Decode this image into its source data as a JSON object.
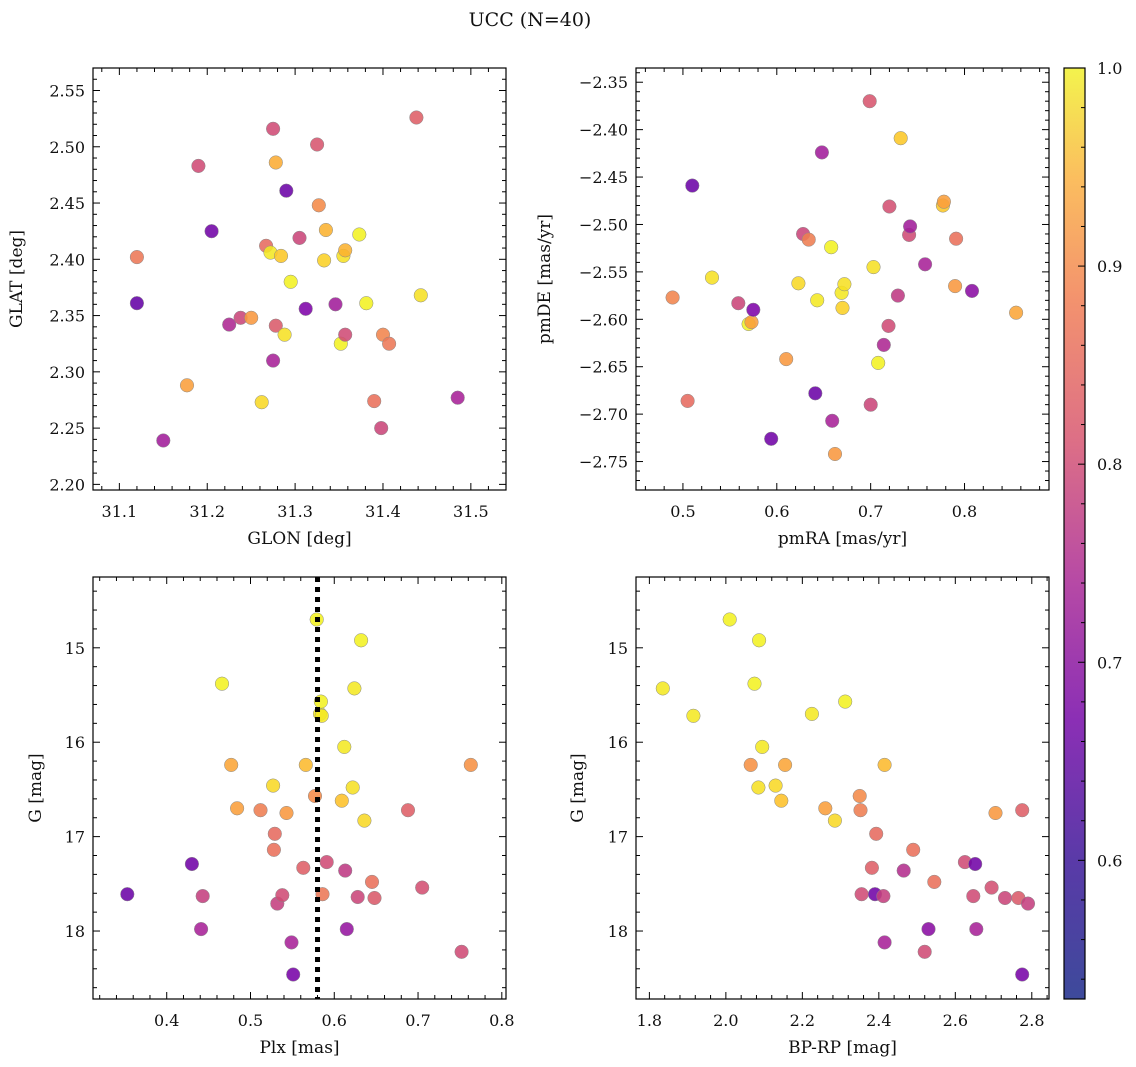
{
  "figure": {
    "title": "UCC (N=40)"
  },
  "colorbar": {
    "colormap": "plasma",
    "range": [
      0.53,
      1.0
    ],
    "ticks": [
      0.6,
      0.7,
      0.8,
      0.9,
      1.0
    ],
    "tick_labels": [
      "0.6",
      "0.7",
      "0.8",
      "0.9",
      "1.0"
    ]
  },
  "chart_data": [
    {
      "type": "scatter",
      "id": "glon-glat",
      "xlabel": "GLON [deg]",
      "ylabel": "GLAT [deg]",
      "xlim": [
        31.07,
        31.54
      ],
      "ylim": [
        2.195,
        2.57
      ],
      "xticks": [
        31.1,
        31.2,
        31.3,
        31.4,
        31.5
      ],
      "yticks": [
        2.2,
        2.25,
        2.3,
        2.35,
        2.4,
        2.45,
        2.5,
        2.55
      ],
      "xtick_labels": [
        "31.1",
        "31.2",
        "31.3",
        "31.4",
        "31.5"
      ],
      "ytick_labels": [
        "2.20",
        "2.25",
        "2.30",
        "2.35",
        "2.40",
        "2.45",
        "2.50",
        "2.55"
      ],
      "points": [
        {
          "x": 31.12,
          "y": 2.402,
          "c": 0.82
        },
        {
          "x": 31.12,
          "y": 2.361,
          "c": 0.56
        },
        {
          "x": 31.15,
          "y": 2.239,
          "c": 0.66
        },
        {
          "x": 31.177,
          "y": 2.288,
          "c": 0.88
        },
        {
          "x": 31.19,
          "y": 2.483,
          "c": 0.74
        },
        {
          "x": 31.205,
          "y": 2.425,
          "c": 0.58
        },
        {
          "x": 31.225,
          "y": 2.342,
          "c": 0.68
        },
        {
          "x": 31.238,
          "y": 2.348,
          "c": 0.73
        },
        {
          "x": 31.25,
          "y": 2.348,
          "c": 0.87
        },
        {
          "x": 31.262,
          "y": 2.273,
          "c": 0.96
        },
        {
          "x": 31.267,
          "y": 2.412,
          "c": 0.8
        },
        {
          "x": 31.272,
          "y": 2.406,
          "c": 0.98
        },
        {
          "x": 31.275,
          "y": 2.516,
          "c": 0.74
        },
        {
          "x": 31.275,
          "y": 2.31,
          "c": 0.67
        },
        {
          "x": 31.278,
          "y": 2.341,
          "c": 0.77
        },
        {
          "x": 31.278,
          "y": 2.486,
          "c": 0.9
        },
        {
          "x": 31.284,
          "y": 2.403,
          "c": 0.94
        },
        {
          "x": 31.288,
          "y": 2.333,
          "c": 0.97
        },
        {
          "x": 31.29,
          "y": 2.461,
          "c": 0.57
        },
        {
          "x": 31.295,
          "y": 2.38,
          "c": 0.99
        },
        {
          "x": 31.305,
          "y": 2.419,
          "c": 0.73
        },
        {
          "x": 31.312,
          "y": 2.356,
          "c": 0.6
        },
        {
          "x": 31.325,
          "y": 2.502,
          "c": 0.76
        },
        {
          "x": 31.327,
          "y": 2.448,
          "c": 0.85
        },
        {
          "x": 31.333,
          "y": 2.399,
          "c": 0.95
        },
        {
          "x": 31.335,
          "y": 2.426,
          "c": 0.91
        },
        {
          "x": 31.346,
          "y": 2.36,
          "c": 0.66
        },
        {
          "x": 31.352,
          "y": 2.325,
          "c": 0.99
        },
        {
          "x": 31.355,
          "y": 2.403,
          "c": 0.97
        },
        {
          "x": 31.357,
          "y": 2.408,
          "c": 0.91
        },
        {
          "x": 31.357,
          "y": 2.333,
          "c": 0.74
        },
        {
          "x": 31.373,
          "y": 2.422,
          "c": 0.99
        },
        {
          "x": 31.381,
          "y": 2.361,
          "c": 0.99
        },
        {
          "x": 31.39,
          "y": 2.274,
          "c": 0.81
        },
        {
          "x": 31.398,
          "y": 2.25,
          "c": 0.73
        },
        {
          "x": 31.4,
          "y": 2.333,
          "c": 0.84
        },
        {
          "x": 31.407,
          "y": 2.325,
          "c": 0.82
        },
        {
          "x": 31.438,
          "y": 2.526,
          "c": 0.78
        },
        {
          "x": 31.443,
          "y": 2.368,
          "c": 0.97
        },
        {
          "x": 31.485,
          "y": 2.277,
          "c": 0.67
        }
      ]
    },
    {
      "type": "scatter",
      "id": "pmra-pmde",
      "xlabel": "pmRA [mas/yr]",
      "ylabel": "pmDE [mas/yr]",
      "xlim": [
        0.45,
        0.89
      ],
      "ylim": [
        -2.78,
        -2.335
      ],
      "xticks": [
        0.5,
        0.6,
        0.7,
        0.8
      ],
      "yticks": [
        -2.75,
        -2.7,
        -2.65,
        -2.6,
        -2.55,
        -2.5,
        -2.45,
        -2.4,
        -2.35
      ],
      "xtick_labels": [
        "0.5",
        "0.6",
        "0.7",
        "0.8"
      ],
      "ytick_labels": [
        "−2.75",
        "−2.70",
        "−2.65",
        "−2.60",
        "−2.55",
        "−2.50",
        "−2.45",
        "−2.40",
        "−2.35"
      ],
      "points": [
        {
          "x": 0.489,
          "y": -2.577,
          "c": 0.84
        },
        {
          "x": 0.505,
          "y": -2.686,
          "c": 0.8
        },
        {
          "x": 0.51,
          "y": -2.459,
          "c": 0.57
        },
        {
          "x": 0.531,
          "y": -2.556,
          "c": 0.97
        },
        {
          "x": 0.559,
          "y": -2.583,
          "c": 0.73
        },
        {
          "x": 0.57,
          "y": -2.605,
          "c": 0.99
        },
        {
          "x": 0.573,
          "y": -2.603,
          "c": 0.88
        },
        {
          "x": 0.575,
          "y": -2.59,
          "c": 0.6
        },
        {
          "x": 0.594,
          "y": -2.726,
          "c": 0.58
        },
        {
          "x": 0.61,
          "y": -2.642,
          "c": 0.87
        },
        {
          "x": 0.623,
          "y": -2.562,
          "c": 0.96
        },
        {
          "x": 0.628,
          "y": -2.51,
          "c": 0.73
        },
        {
          "x": 0.634,
          "y": -2.516,
          "c": 0.83
        },
        {
          "x": 0.641,
          "y": -2.678,
          "c": 0.57
        },
        {
          "x": 0.643,
          "y": -2.58,
          "c": 0.98
        },
        {
          "x": 0.648,
          "y": -2.424,
          "c": 0.66
        },
        {
          "x": 0.658,
          "y": -2.524,
          "c": 0.99
        },
        {
          "x": 0.659,
          "y": -2.707,
          "c": 0.67
        },
        {
          "x": 0.662,
          "y": -2.742,
          "c": 0.87
        },
        {
          "x": 0.669,
          "y": -2.572,
          "c": 0.98
        },
        {
          "x": 0.67,
          "y": -2.588,
          "c": 0.95
        },
        {
          "x": 0.672,
          "y": -2.563,
          "c": 0.97
        },
        {
          "x": 0.699,
          "y": -2.37,
          "c": 0.76
        },
        {
          "x": 0.7,
          "y": -2.69,
          "c": 0.73
        },
        {
          "x": 0.703,
          "y": -2.545,
          "c": 0.97
        },
        {
          "x": 0.708,
          "y": -2.646,
          "c": 0.99
        },
        {
          "x": 0.714,
          "y": -2.627,
          "c": 0.68
        },
        {
          "x": 0.719,
          "y": -2.607,
          "c": 0.74
        },
        {
          "x": 0.72,
          "y": -2.481,
          "c": 0.75
        },
        {
          "x": 0.729,
          "y": -2.575,
          "c": 0.71
        },
        {
          "x": 0.732,
          "y": -2.409,
          "c": 0.94
        },
        {
          "x": 0.741,
          "y": -2.511,
          "c": 0.74
        },
        {
          "x": 0.742,
          "y": -2.502,
          "c": 0.66
        },
        {
          "x": 0.758,
          "y": -2.542,
          "c": 0.67
        },
        {
          "x": 0.777,
          "y": -2.48,
          "c": 0.94
        },
        {
          "x": 0.778,
          "y": -2.476,
          "c": 0.88
        },
        {
          "x": 0.79,
          "y": -2.565,
          "c": 0.87
        },
        {
          "x": 0.791,
          "y": -2.515,
          "c": 0.81
        },
        {
          "x": 0.808,
          "y": -2.57,
          "c": 0.62
        },
        {
          "x": 0.855,
          "y": -2.593,
          "c": 0.89
        }
      ]
    },
    {
      "type": "scatter",
      "id": "plx-g",
      "xlabel": "Plx [mas]",
      "ylabel": "G [mag]",
      "xlim": [
        0.312,
        0.805
      ],
      "ylim": [
        18.72,
        14.25
      ],
      "y_inverted": true,
      "xticks": [
        0.4,
        0.5,
        0.6,
        0.7,
        0.8
      ],
      "yticks": [
        15,
        16,
        17,
        18
      ],
      "xtick_labels": [
        "0.4",
        "0.5",
        "0.6",
        "0.7",
        "0.8"
      ],
      "ytick_labels": [
        "15",
        "16",
        "17",
        "18"
      ],
      "vline": {
        "x": 0.58,
        "style": "dotted",
        "color": "#000000"
      },
      "points": [
        {
          "x": 0.353,
          "y": 17.61,
          "c": 0.57
        },
        {
          "x": 0.43,
          "y": 17.29,
          "c": 0.58
        },
        {
          "x": 0.441,
          "y": 17.98,
          "c": 0.67
        },
        {
          "x": 0.443,
          "y": 17.63,
          "c": 0.72
        },
        {
          "x": 0.466,
          "y": 15.38,
          "c": 0.99
        },
        {
          "x": 0.477,
          "y": 16.24,
          "c": 0.89
        },
        {
          "x": 0.484,
          "y": 16.7,
          "c": 0.88
        },
        {
          "x": 0.512,
          "y": 16.72,
          "c": 0.83
        },
        {
          "x": 0.527,
          "y": 16.46,
          "c": 0.96
        },
        {
          "x": 0.528,
          "y": 17.14,
          "c": 0.81
        },
        {
          "x": 0.529,
          "y": 16.97,
          "c": 0.8
        },
        {
          "x": 0.532,
          "y": 17.71,
          "c": 0.72
        },
        {
          "x": 0.538,
          "y": 17.62,
          "c": 0.74
        },
        {
          "x": 0.543,
          "y": 16.75,
          "c": 0.87
        },
        {
          "x": 0.549,
          "y": 18.12,
          "c": 0.67
        },
        {
          "x": 0.551,
          "y": 18.46,
          "c": 0.59
        },
        {
          "x": 0.563,
          "y": 17.33,
          "c": 0.78
        },
        {
          "x": 0.566,
          "y": 16.24,
          "c": 0.92
        },
        {
          "x": 0.577,
          "y": 16.57,
          "c": 0.85
        },
        {
          "x": 0.579,
          "y": 14.7,
          "c": 0.99
        },
        {
          "x": 0.583,
          "y": 15.7,
          "c": 0.98
        },
        {
          "x": 0.584,
          "y": 15.57,
          "c": 0.99
        },
        {
          "x": 0.585,
          "y": 15.72,
          "c": 0.98
        },
        {
          "x": 0.586,
          "y": 17.61,
          "c": 0.82
        },
        {
          "x": 0.591,
          "y": 17.27,
          "c": 0.74
        },
        {
          "x": 0.609,
          "y": 16.62,
          "c": 0.93
        },
        {
          "x": 0.612,
          "y": 16.05,
          "c": 0.98
        },
        {
          "x": 0.613,
          "y": 17.36,
          "c": 0.71
        },
        {
          "x": 0.615,
          "y": 17.98,
          "c": 0.64
        },
        {
          "x": 0.622,
          "y": 16.48,
          "c": 0.97
        },
        {
          "x": 0.624,
          "y": 15.43,
          "c": 0.98
        },
        {
          "x": 0.628,
          "y": 17.64,
          "c": 0.73
        },
        {
          "x": 0.632,
          "y": 14.92,
          "c": 0.99
        },
        {
          "x": 0.636,
          "y": 16.83,
          "c": 0.96
        },
        {
          "x": 0.645,
          "y": 17.48,
          "c": 0.81
        },
        {
          "x": 0.648,
          "y": 17.65,
          "c": 0.77
        },
        {
          "x": 0.688,
          "y": 16.72,
          "c": 0.78
        },
        {
          "x": 0.705,
          "y": 17.54,
          "c": 0.75
        },
        {
          "x": 0.752,
          "y": 18.22,
          "c": 0.74
        },
        {
          "x": 0.763,
          "y": 16.24,
          "c": 0.86
        }
      ]
    },
    {
      "type": "scatter",
      "id": "bprp-g",
      "xlabel": "BP-RP [mag]",
      "ylabel": "G [mag]",
      "xlim": [
        1.765,
        2.845
      ],
      "ylim": [
        18.72,
        14.25
      ],
      "y_inverted": true,
      "xticks": [
        1.8,
        2.0,
        2.2,
        2.4,
        2.6,
        2.8
      ],
      "yticks": [
        15,
        16,
        17,
        18
      ],
      "xtick_labels": [
        "1.8",
        "2.0",
        "2.2",
        "2.4",
        "2.6",
        "2.8"
      ],
      "ytick_labels": [
        "15",
        "16",
        "17",
        "18"
      ],
      "points": [
        {
          "x": 1.835,
          "y": 15.43,
          "c": 0.98
        },
        {
          "x": 1.915,
          "y": 15.72,
          "c": 0.98
        },
        {
          "x": 2.01,
          "y": 14.7,
          "c": 0.99
        },
        {
          "x": 2.065,
          "y": 16.24,
          "c": 0.86
        },
        {
          "x": 2.075,
          "y": 15.38,
          "c": 0.99
        },
        {
          "x": 2.085,
          "y": 16.48,
          "c": 0.97
        },
        {
          "x": 2.087,
          "y": 14.92,
          "c": 0.99
        },
        {
          "x": 2.095,
          "y": 16.05,
          "c": 0.98
        },
        {
          "x": 2.13,
          "y": 16.46,
          "c": 0.96
        },
        {
          "x": 2.145,
          "y": 16.62,
          "c": 0.93
        },
        {
          "x": 2.155,
          "y": 16.24,
          "c": 0.89
        },
        {
          "x": 2.225,
          "y": 15.7,
          "c": 0.98
        },
        {
          "x": 2.26,
          "y": 16.7,
          "c": 0.88
        },
        {
          "x": 2.285,
          "y": 16.83,
          "c": 0.96
        },
        {
          "x": 2.312,
          "y": 15.57,
          "c": 0.99
        },
        {
          "x": 2.35,
          "y": 16.57,
          "c": 0.85
        },
        {
          "x": 2.352,
          "y": 16.72,
          "c": 0.83
        },
        {
          "x": 2.355,
          "y": 17.61,
          "c": 0.74
        },
        {
          "x": 2.382,
          "y": 17.33,
          "c": 0.78
        },
        {
          "x": 2.39,
          "y": 17.61,
          "c": 0.58
        },
        {
          "x": 2.393,
          "y": 16.97,
          "c": 0.8
        },
        {
          "x": 2.412,
          "y": 17.63,
          "c": 0.72
        },
        {
          "x": 2.415,
          "y": 16.24,
          "c": 0.92
        },
        {
          "x": 2.415,
          "y": 18.12,
          "c": 0.67
        },
        {
          "x": 2.465,
          "y": 17.36,
          "c": 0.69
        },
        {
          "x": 2.49,
          "y": 17.14,
          "c": 0.81
        },
        {
          "x": 2.52,
          "y": 18.22,
          "c": 0.74
        },
        {
          "x": 2.53,
          "y": 17.98,
          "c": 0.62
        },
        {
          "x": 2.545,
          "y": 17.48,
          "c": 0.81
        },
        {
          "x": 2.625,
          "y": 17.27,
          "c": 0.74
        },
        {
          "x": 2.647,
          "y": 17.63,
          "c": 0.74
        },
        {
          "x": 2.652,
          "y": 17.29,
          "c": 0.58
        },
        {
          "x": 2.655,
          "y": 17.98,
          "c": 0.67
        },
        {
          "x": 2.695,
          "y": 17.54,
          "c": 0.75
        },
        {
          "x": 2.705,
          "y": 16.75,
          "c": 0.87
        },
        {
          "x": 2.73,
          "y": 17.65,
          "c": 0.73
        },
        {
          "x": 2.765,
          "y": 17.65,
          "c": 0.77
        },
        {
          "x": 2.775,
          "y": 16.72,
          "c": 0.78
        },
        {
          "x": 2.775,
          "y": 18.46,
          "c": 0.59
        },
        {
          "x": 2.79,
          "y": 17.71,
          "c": 0.72
        }
      ]
    }
  ]
}
